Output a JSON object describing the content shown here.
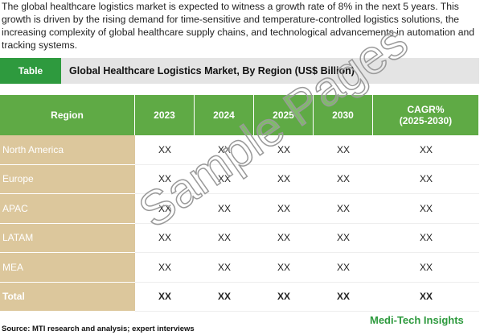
{
  "intro": "The global healthcare logistics market is expected to witness a growth rate of 8% in the next 5 years. This growth is driven by the rising demand for time-sensitive and temperature-controlled logistics solutions, the increasing complexity of global healthcare supply chains, and technological advancements in automation and tracking systems.",
  "banner": {
    "tab": "Table",
    "title": "Global Healthcare Logistics Market, By Region (US$ Billion)"
  },
  "table": {
    "headers": [
      "Region",
      "2023",
      "2024",
      "2025",
      "2030",
      "CAGR%\n(2025-2030)"
    ],
    "rows": [
      [
        "North America",
        "XX",
        "XX",
        "XX",
        "XX",
        "XX"
      ],
      [
        "Europe",
        "XX",
        "XX",
        "XX",
        "XX",
        "XX"
      ],
      [
        "APAC",
        "XX",
        "XX",
        "XX",
        "XX",
        "XX"
      ],
      [
        "LATAM",
        "XX",
        "XX",
        "XX",
        "XX",
        "XX"
      ],
      [
        "MEA",
        "XX",
        "XX",
        "XX",
        "XX",
        "XX"
      ],
      [
        "Total",
        "XX",
        "XX",
        "XX",
        "XX",
        "XX"
      ]
    ]
  },
  "source": "Source: MTI research and analysis; expert interviews",
  "brand": "Medi-Tech Insights",
  "watermark": "Sample Pages"
}
